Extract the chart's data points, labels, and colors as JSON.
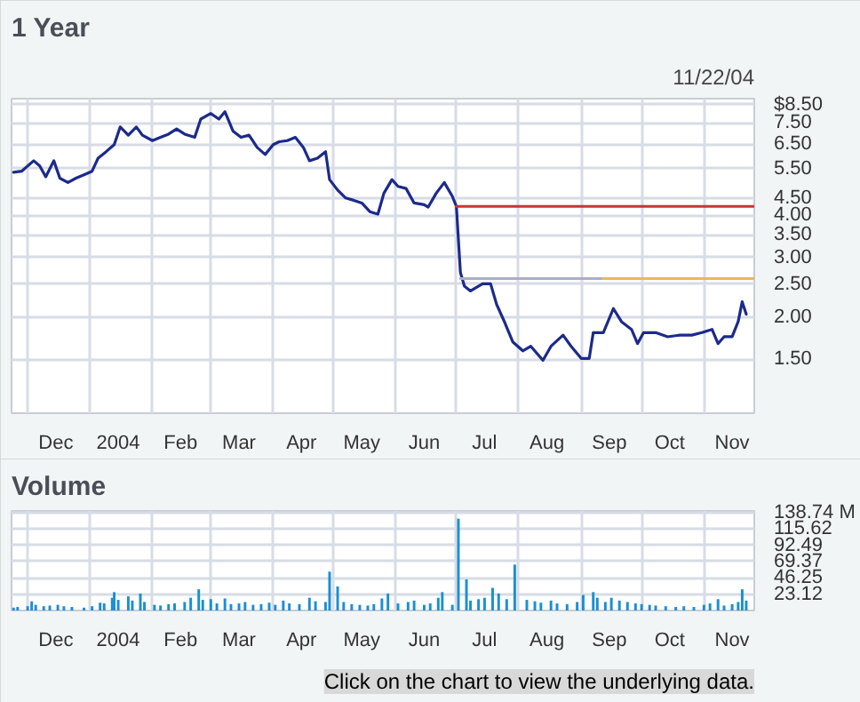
{
  "chart_data": [
    {
      "type": "line",
      "title": "1 Year",
      "subtitle": "11/22/04",
      "log": true,
      "grid": true,
      "xlim": [
        "2003-11-23",
        "2004-11-26"
      ],
      "xticks": [
        {
          "value": "2003-12-01",
          "label": null
        },
        {
          "value": "2003-12-15",
          "label": "Dec"
        },
        {
          "value": "2004-01-01",
          "label": null
        },
        {
          "value": "2004-01-15",
          "label": "2004"
        },
        {
          "value": "2004-02-01",
          "label": null
        },
        {
          "value": "2004-02-15",
          "label": "Feb"
        },
        {
          "value": "2004-03-01",
          "label": null
        },
        {
          "value": "2004-03-15",
          "label": "Mar"
        },
        {
          "value": "2004-04-01",
          "label": null
        },
        {
          "value": "2004-04-15",
          "label": "Apr"
        },
        {
          "value": "2004-05-01",
          "label": null
        },
        {
          "value": "2004-05-15",
          "label": "May"
        },
        {
          "value": "2004-06-01",
          "label": null
        },
        {
          "value": "2004-06-15",
          "label": "Jun"
        },
        {
          "value": "2004-07-01",
          "label": null
        },
        {
          "value": "2004-07-15",
          "label": "Jul"
        },
        {
          "value": "2004-08-01",
          "label": null
        },
        {
          "value": "2004-08-15",
          "label": "Aug"
        },
        {
          "value": "2004-09-01",
          "label": null
        },
        {
          "value": "2004-09-15",
          "label": "Sep"
        },
        {
          "value": "2004-10-01",
          "label": null
        },
        {
          "value": "2004-10-15",
          "label": "Oct"
        },
        {
          "value": "2004-11-01",
          "label": null
        },
        {
          "value": "2004-11-15",
          "label": "Nov"
        }
      ],
      "ylim": [
        1.04,
        8.85
      ],
      "yticks": [
        {
          "value": 1.5,
          "label": "1.50"
        },
        {
          "value": 2,
          "label": "2.00"
        },
        {
          "value": 2.5,
          "label": "2.50"
        },
        {
          "value": 3,
          "label": "3.00"
        },
        {
          "value": 3.5,
          "label": "3.50"
        },
        {
          "value": 4,
          "label": "4.00"
        },
        {
          "value": 4.5,
          "label": "4.50"
        },
        {
          "value": 5.5,
          "label": "5.50"
        },
        {
          "value": 6.5,
          "label": "6.50"
        },
        {
          "value": 7.5,
          "label": "7.50"
        },
        {
          "value": 8.5,
          "label": "$8.50"
        }
      ],
      "series": [
        {
          "color": "#1c2a8c",
          "x": [
            "2003-11-24",
            "2003-11-28",
            "2003-12-04",
            "2003-12-07",
            "2003-12-10",
            "2003-12-14",
            "2003-12-17",
            "2003-12-21",
            "2003-12-25",
            "2003-12-30",
            "2004-01-02",
            "2004-01-05",
            "2004-01-09",
            "2004-01-13",
            "2004-01-16",
            "2004-01-20",
            "2004-01-24",
            "2004-01-27",
            "2004-02-01",
            "2004-02-05",
            "2004-02-09",
            "2004-02-13",
            "2004-02-17",
            "2004-02-22",
            "2004-02-25",
            "2004-03-01",
            "2004-03-05",
            "2004-03-08",
            "2004-03-12",
            "2004-03-16",
            "2004-03-20",
            "2004-03-24",
            "2004-03-28",
            "2004-04-01",
            "2004-04-04",
            "2004-04-08",
            "2004-04-12",
            "2004-04-16",
            "2004-04-19",
            "2004-04-23",
            "2004-04-27",
            "2004-04-29",
            "2004-05-03",
            "2004-05-07",
            "2004-05-11",
            "2004-05-15",
            "2004-05-19",
            "2004-05-23",
            "2004-05-26",
            "2004-05-30",
            "2004-06-02",
            "2004-06-06",
            "2004-06-10",
            "2004-06-15",
            "2004-06-17",
            "2004-06-21",
            "2004-06-25",
            "2004-06-29",
            "2004-07-01",
            "2004-07-03",
            "2004-07-05",
            "2004-07-08",
            "2004-07-14",
            "2004-07-18",
            "2004-07-21",
            "2004-07-25",
            "2004-07-29",
            "2004-08-03",
            "2004-08-07",
            "2004-08-13",
            "2004-08-17",
            "2004-08-23",
            "2004-08-27",
            "2004-09-01",
            "2004-09-05",
            "2004-09-07",
            "2004-09-12",
            "2004-09-17",
            "2004-09-21",
            "2004-09-26",
            "2004-09-29",
            "2004-10-02",
            "2004-10-08",
            "2004-10-14",
            "2004-10-20",
            "2004-10-26",
            "2004-10-31",
            "2004-11-05",
            "2004-11-08",
            "2004-11-11",
            "2004-11-15",
            "2004-11-18",
            "2004-11-20",
            "2004-11-22"
          ],
          "values": [
            5.36,
            5.4,
            5.8,
            5.6,
            5.2,
            5.8,
            5.15,
            5.0,
            5.15,
            5.3,
            5.4,
            5.9,
            6.17,
            6.47,
            7.3,
            6.9,
            7.3,
            6.9,
            6.65,
            6.8,
            6.95,
            7.2,
            6.95,
            6.8,
            7.7,
            8.0,
            7.7,
            8.1,
            7.1,
            6.8,
            6.9,
            6.35,
            6.05,
            6.47,
            6.6,
            6.65,
            6.8,
            6.35,
            5.8,
            5.9,
            6.17,
            5.1,
            4.75,
            4.5,
            4.43,
            4.35,
            4.1,
            4.03,
            4.65,
            5.1,
            4.87,
            4.8,
            4.35,
            4.3,
            4.23,
            4.65,
            5.0,
            4.55,
            4.25,
            2.71,
            2.47,
            2.39,
            2.51,
            2.51,
            2.18,
            1.93,
            1.69,
            1.59,
            1.64,
            1.49,
            1.64,
            1.77,
            1.64,
            1.51,
            1.51,
            1.8,
            1.8,
            2.12,
            1.94,
            1.84,
            1.67,
            1.8,
            1.8,
            1.75,
            1.77,
            1.77,
            1.8,
            1.84,
            1.67,
            1.75,
            1.75,
            1.94,
            2.22,
            2.04
          ]
        },
        {
          "color": "#cc3333",
          "x": [
            "2004-07-01",
            "2004-11-26"
          ],
          "values": [
            4.25,
            4.25
          ]
        },
        {
          "color": "#a8b0c8",
          "x": [
            "2004-07-03",
            "2004-09-12"
          ],
          "values": [
            2.6,
            2.6
          ]
        },
        {
          "color": "#e8b860",
          "x": [
            "2004-09-12",
            "2004-11-26"
          ],
          "values": [
            2.6,
            2.6
          ]
        }
      ]
    },
    {
      "type": "bar",
      "title": "Volume",
      "grid": true,
      "color": "#1a8fd4",
      "annotations": [
        "Click on the chart to view the underlying data."
      ],
      "xlim": [
        "2003-11-23",
        "2004-11-26"
      ],
      "xticks": [
        {
          "value": "2003-12-01",
          "label": null
        },
        {
          "value": "2003-12-15",
          "label": "Dec"
        },
        {
          "value": "2004-01-01",
          "label": null
        },
        {
          "value": "2004-01-15",
          "label": "2004"
        },
        {
          "value": "2004-02-01",
          "label": null
        },
        {
          "value": "2004-02-15",
          "label": "Feb"
        },
        {
          "value": "2004-03-01",
          "label": null
        },
        {
          "value": "2004-03-15",
          "label": "Mar"
        },
        {
          "value": "2004-04-01",
          "label": null
        },
        {
          "value": "2004-04-15",
          "label": "Apr"
        },
        {
          "value": "2004-05-01",
          "label": null
        },
        {
          "value": "2004-05-15",
          "label": "May"
        },
        {
          "value": "2004-06-01",
          "label": null
        },
        {
          "value": "2004-06-15",
          "label": "Jun"
        },
        {
          "value": "2004-07-01",
          "label": null
        },
        {
          "value": "2004-07-15",
          "label": "Jul"
        },
        {
          "value": "2004-08-01",
          "label": null
        },
        {
          "value": "2004-08-15",
          "label": "Aug"
        },
        {
          "value": "2004-09-01",
          "label": null
        },
        {
          "value": "2004-09-15",
          "label": "Sep"
        },
        {
          "value": "2004-10-01",
          "label": null
        },
        {
          "value": "2004-10-15",
          "label": "Oct"
        },
        {
          "value": "2004-11-01",
          "label": null
        },
        {
          "value": "2004-11-15",
          "label": "Nov"
        }
      ],
      "ylim": [
        0,
        141
      ],
      "yticks": [
        {
          "value": 23.12,
          "label": "23.12"
        },
        {
          "value": 46.25,
          "label": "46.25"
        },
        {
          "value": 69.37,
          "label": "69.37"
        },
        {
          "value": 92.49,
          "label": "92.49"
        },
        {
          "value": 115.62,
          "label": "115.62"
        },
        {
          "value": 138.74,
          "label": "138.74 M"
        }
      ],
      "x": [
        "2003-11-24",
        "2003-11-26",
        "2003-12-01",
        "2003-12-03",
        "2003-12-05",
        "2003-12-09",
        "2003-12-12",
        "2003-12-16",
        "2003-12-19",
        "2003-12-23",
        "2003-12-29",
        "2004-01-02",
        "2004-01-06",
        "2004-01-08",
        "2004-01-12",
        "2004-01-13",
        "2004-01-15",
        "2004-01-20",
        "2004-01-22",
        "2004-01-26",
        "2004-01-28",
        "2004-02-02",
        "2004-02-05",
        "2004-02-09",
        "2004-02-12",
        "2004-02-17",
        "2004-02-20",
        "2004-02-24",
        "2004-02-26",
        "2004-03-01",
        "2004-03-04",
        "2004-03-08",
        "2004-03-11",
        "2004-03-15",
        "2004-03-18",
        "2004-03-22",
        "2004-03-26",
        "2004-03-30",
        "2004-04-02",
        "2004-04-06",
        "2004-04-09",
        "2004-04-14",
        "2004-04-19",
        "2004-04-22",
        "2004-04-27",
        "2004-04-29",
        "2004-05-03",
        "2004-05-06",
        "2004-05-10",
        "2004-05-14",
        "2004-05-18",
        "2004-05-21",
        "2004-05-25",
        "2004-05-28",
        "2004-06-02",
        "2004-06-07",
        "2004-06-10",
        "2004-06-15",
        "2004-06-18",
        "2004-06-22",
        "2004-06-24",
        "2004-06-29",
        "2004-07-02",
        "2004-07-06",
        "2004-07-08",
        "2004-07-12",
        "2004-07-15",
        "2004-07-19",
        "2004-07-22",
        "2004-07-26",
        "2004-07-30",
        "2004-08-05",
        "2004-08-09",
        "2004-08-12",
        "2004-08-17",
        "2004-08-20",
        "2004-08-25",
        "2004-08-30",
        "2004-09-02",
        "2004-09-07",
        "2004-09-09",
        "2004-09-13",
        "2004-09-16",
        "2004-09-20",
        "2004-09-24",
        "2004-09-28",
        "2004-10-01",
        "2004-10-05",
        "2004-10-08",
        "2004-10-13",
        "2004-10-18",
        "2004-10-22",
        "2004-10-27",
        "2004-11-01",
        "2004-11-04",
        "2004-11-08",
        "2004-11-11",
        "2004-11-15",
        "2004-11-18",
        "2004-11-20",
        "2004-11-22"
      ],
      "values": [
        4,
        5,
        6,
        13,
        8,
        6,
        7,
        8,
        6,
        5,
        4,
        6,
        11,
        10,
        18,
        26,
        15,
        20,
        14,
        24,
        12,
        8,
        7,
        9,
        10,
        12,
        18,
        30,
        15,
        16,
        10,
        17,
        9,
        10,
        12,
        8,
        9,
        11,
        8,
        14,
        10,
        9,
        18,
        13,
        12,
        55,
        34,
        12,
        9,
        8,
        7,
        9,
        17,
        24,
        10,
        12,
        14,
        8,
        10,
        18,
        26,
        8,
        130,
        44,
        14,
        16,
        18,
        32,
        24,
        16,
        65,
        15,
        13,
        11,
        14,
        10,
        9,
        12,
        22,
        26,
        18,
        12,
        18,
        14,
        12,
        10,
        9,
        8,
        7,
        6,
        5,
        6,
        5,
        8,
        10,
        16,
        7,
        9,
        12,
        30,
        14
      ]
    }
  ]
}
